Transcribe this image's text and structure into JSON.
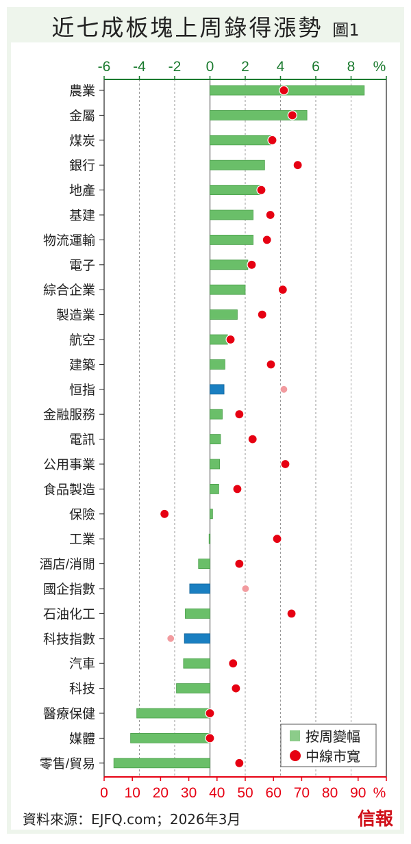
{
  "title": "近七成板塊上周錄得漲勢",
  "figure_label": "圖1",
  "source": "資料來源：EJFQ.com；2026年3月",
  "logo": "信報",
  "chart_data": {
    "type": "bar",
    "title": "近七成板塊上周錄得漲勢",
    "top_axis": {
      "label": "%",
      "range": [
        -6,
        10
      ],
      "ticks": [
        -6,
        -4,
        -2,
        0,
        2,
        4,
        6,
        8
      ],
      "color": "#1a7a2e"
    },
    "bottom_axis": {
      "label": "%",
      "range": [
        0,
        100
      ],
      "ticks": [
        0,
        10,
        20,
        30,
        40,
        50,
        60,
        70,
        80,
        90
      ],
      "color": "#e60012"
    },
    "legend": {
      "position": "bottom-right",
      "entries": [
        "按周變幅",
        "中線市寬"
      ]
    },
    "grid": true,
    "categories": [
      "農業",
      "金屬",
      "煤炭",
      "銀行",
      "地產",
      "基建",
      "物流運輸",
      "電子",
      "綜合企業",
      "製造業",
      "航空",
      "建築",
      "恒指",
      "金融服務",
      "電訊",
      "公用事業",
      "食品製造",
      "保險",
      "工業",
      "酒店/消閒",
      "國企指數",
      "石油化工",
      "科技指數",
      "汽車",
      "科技",
      "醫療保健",
      "媒體",
      "零售/貿易"
    ],
    "series": [
      {
        "name": "按周變幅",
        "axis": "top",
        "values": [
          8.75,
          5.5,
          3.45,
          3.1,
          2.85,
          2.45,
          2.45,
          2.15,
          2.0,
          1.55,
          1.0,
          0.85,
          0.8,
          0.7,
          0.6,
          0.55,
          0.5,
          0.15,
          -0.05,
          -0.65,
          -1.15,
          -1.4,
          -1.45,
          -1.5,
          -1.9,
          -4.15,
          -4.5,
          -5.45
        ]
      },
      {
        "name": "中線市寬",
        "axis": "bottom",
        "values": [
          63.7,
          66.7,
          59.6,
          68.6,
          55.7,
          58.9,
          57.7,
          52.3,
          63.3,
          56,
          44.8,
          59.1,
          63.7,
          47.9,
          52.6,
          64.2,
          47.2,
          21.4,
          61.3,
          47.9,
          50.1,
          66.4,
          23.6,
          45.7,
          46.7,
          37.5,
          37.5,
          47.9
        ]
      }
    ],
    "index_categories": [
      "恒指",
      "國企指數",
      "科技指數"
    ],
    "colors": {
      "bar": "#6abf69",
      "bar_index": "#1a7fc1",
      "dot": "#e60012",
      "dot_index": "#f29b9f"
    }
  }
}
